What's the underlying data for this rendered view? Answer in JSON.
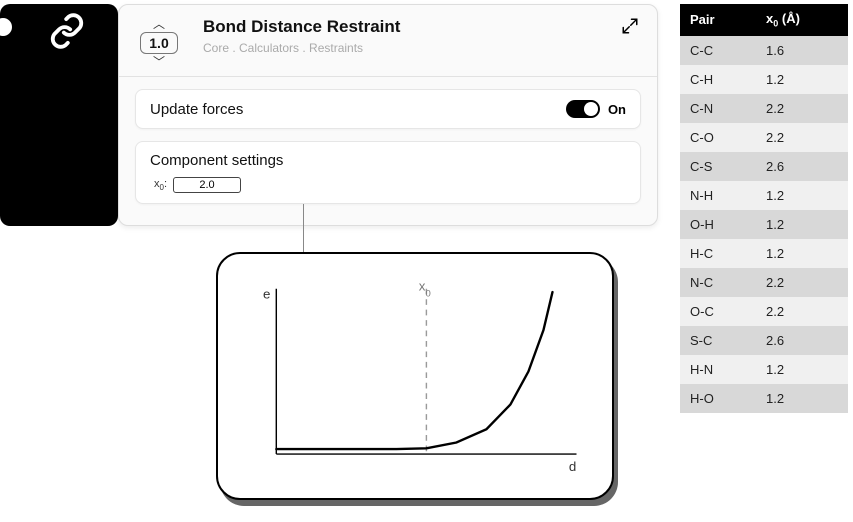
{
  "card": {
    "title": "Bond Distance Restraint",
    "breadcrumb": "Core . Calculators . Restraints",
    "stepper_value": "1.0",
    "update_label": "Update forces",
    "toggle_state": "On",
    "settings_header": "Component settings",
    "x0_label_html": "x<sub>0</sub>:",
    "x0_value": "2.0"
  },
  "chart": {
    "type": "line",
    "y_label": "e",
    "x_label": "d",
    "x0_marker_label_html": "x<sub>0</sub>",
    "x_range": [
      0,
      10
    ],
    "y_range": [
      0,
      10
    ],
    "x0_position": 5.0,
    "curve_points": [
      [
        0,
        0.3
      ],
      [
        2,
        0.3
      ],
      [
        4,
        0.3
      ],
      [
        5,
        0.35
      ],
      [
        6,
        0.7
      ],
      [
        7,
        1.5
      ],
      [
        7.8,
        3.0
      ],
      [
        8.4,
        5.0
      ],
      [
        8.9,
        7.5
      ],
      [
        9.2,
        9.8
      ]
    ],
    "axis_color": "#000000",
    "curve_color": "#000000",
    "curve_width": 2.5,
    "marker_color": "#9a9a9a",
    "marker_dash": "6,5",
    "background": "#ffffff",
    "label_fontsize": 14
  },
  "table": {
    "header_pair": "Pair",
    "header_x0_html": "x<sub>0</sub> (Å)",
    "rows": [
      {
        "pair": "C-C",
        "x0": "1.6"
      },
      {
        "pair": "C-H",
        "x0": "1.2"
      },
      {
        "pair": "C-N",
        "x0": "2.2"
      },
      {
        "pair": "C-O",
        "x0": "2.2"
      },
      {
        "pair": "C-S",
        "x0": "2.6"
      },
      {
        "pair": "N-H",
        "x0": "1.2"
      },
      {
        "pair": "O-H",
        "x0": "1.2"
      },
      {
        "pair": "H-C",
        "x0": "1.2"
      },
      {
        "pair": "N-C",
        "x0": "2.2"
      },
      {
        "pair": "O-C",
        "x0": "2.2"
      },
      {
        "pair": "S-C",
        "x0": "2.6"
      },
      {
        "pair": "H-N",
        "x0": "1.2"
      },
      {
        "pair": "H-O",
        "x0": "1.2"
      }
    ],
    "header_bg": "#000000",
    "header_fg": "#ffffff",
    "row_odd_bg": "#d8d8d8",
    "row_even_bg": "#f0f0f0"
  }
}
